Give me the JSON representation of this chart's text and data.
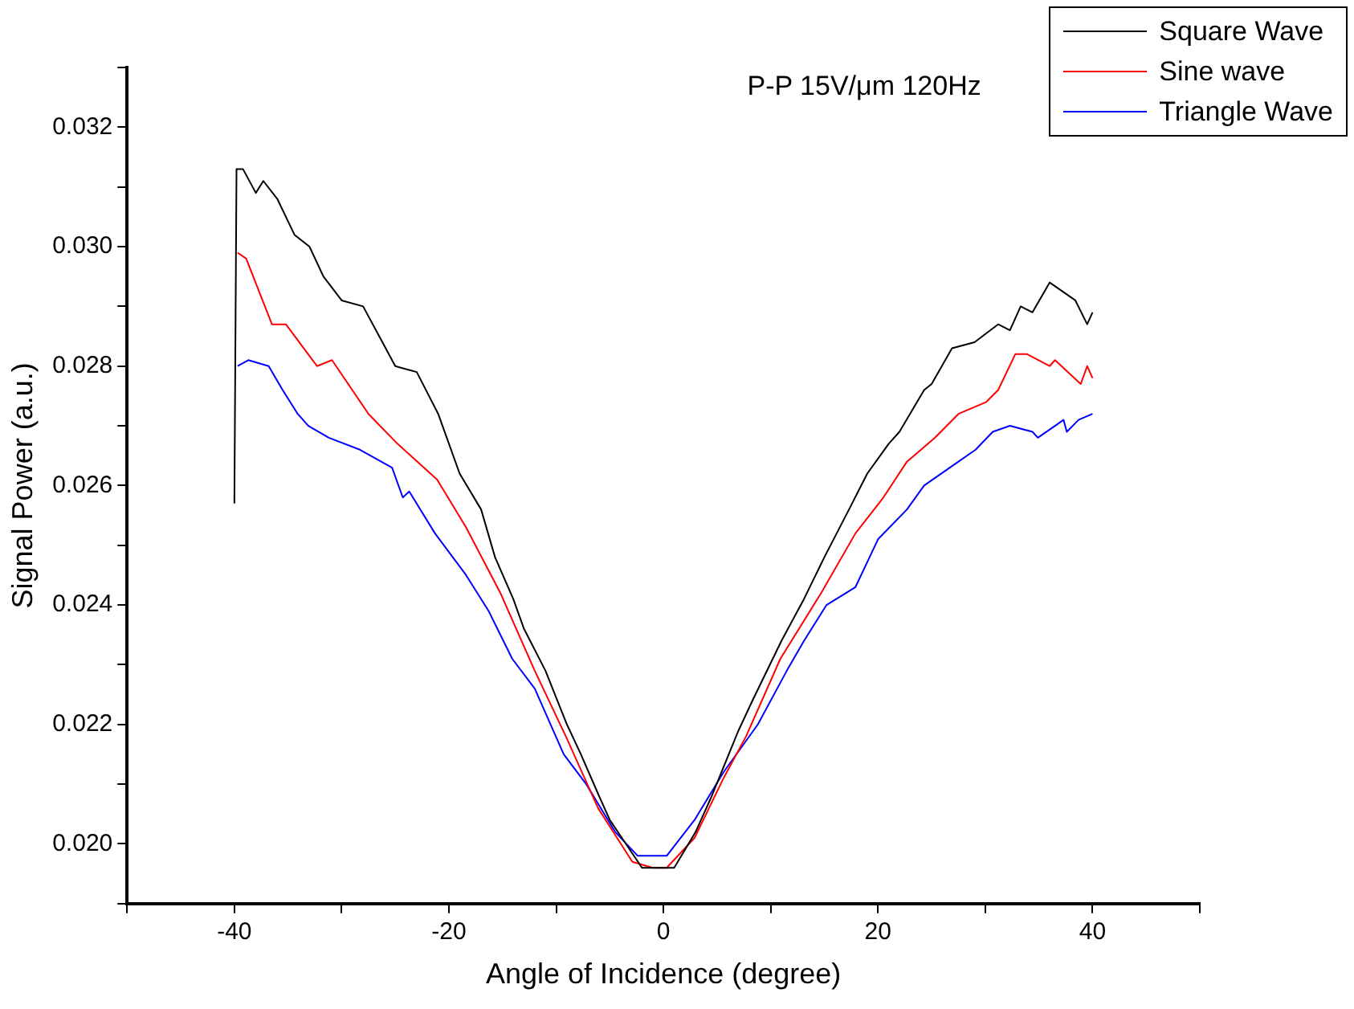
{
  "chart_data": {
    "type": "line",
    "title": "P-P 15V/μm 120Hz",
    "xlabel": "Angle of Incidence (degree)",
    "ylabel": "Signal Power (a.u.)",
    "legend": "top right",
    "grid": false,
    "marker": "none",
    "line_style": "solid",
    "xlim": [
      -50,
      50
    ],
    "xticks": [
      {
        "value": -50,
        "label": null
      },
      -40,
      {
        "value": -30,
        "label": null
      },
      -20,
      {
        "value": -10,
        "label": null
      },
      0,
      {
        "value": 10,
        "label": null
      },
      20,
      {
        "value": 30,
        "label": null
      },
      40,
      {
        "value": 50,
        "label": null
      }
    ],
    "ylim": [
      0.019,
      0.033
    ],
    "yticks": [
      {
        "value": 0.019,
        "label": null
      },
      {
        "value": 0.02,
        "label": "0.020"
      },
      {
        "value": 0.021,
        "label": null
      },
      {
        "value": 0.022,
        "label": "0.022"
      },
      {
        "value": 0.023,
        "label": null
      },
      {
        "value": 0.024,
        "label": "0.024"
      },
      {
        "value": 0.025,
        "label": null
      },
      {
        "value": 0.026,
        "label": "0.026"
      },
      {
        "value": 0.027,
        "label": null
      },
      {
        "value": 0.028,
        "label": "0.028"
      },
      {
        "value": 0.029,
        "label": null
      },
      {
        "value": 0.03,
        "label": "0.030"
      },
      {
        "value": 0.031,
        "label": null
      },
      {
        "value": 0.032,
        "label": "0.032"
      },
      {
        "value": 0.033,
        "label": null
      }
    ],
    "series": [
      {
        "name": "Square Wave",
        "color": "#000000",
        "x": [
          -40,
          -39.8,
          -39.2,
          -38,
          -37.3,
          -36,
          -34.4,
          -33,
          -31.7,
          -30,
          -28,
          -26.5,
          -25,
          -23,
          -21,
          -19,
          -17,
          -15.7,
          -14,
          -13,
          -11,
          -9,
          -7.7,
          -6,
          -5,
          -3.5,
          -2,
          0,
          1,
          3,
          4.5,
          7,
          8.3,
          11,
          13.1,
          15,
          17.3,
          19,
          21,
          22,
          24.3,
          25,
          26.9,
          29,
          31.2,
          32.3,
          33.3,
          34.4,
          36,
          38.4,
          39.5,
          40
        ],
        "values": [
          0.0257,
          0.0313,
          0.0313,
          0.0309,
          0.0311,
          0.0308,
          0.0302,
          0.03,
          0.0295,
          0.0291,
          0.029,
          0.0285,
          0.028,
          0.0279,
          0.0272,
          0.0262,
          0.0256,
          0.0248,
          0.0241,
          0.0236,
          0.0229,
          0.022,
          0.0215,
          0.0208,
          0.0204,
          0.02,
          0.0196,
          0.0196,
          0.0196,
          0.0202,
          0.0208,
          0.0219,
          0.0224,
          0.0234,
          0.0241,
          0.0248,
          0.0256,
          0.0262,
          0.0267,
          0.0269,
          0.0276,
          0.0277,
          0.0283,
          0.0284,
          0.0287,
          0.0286,
          0.029,
          0.0289,
          0.0294,
          0.0291,
          0.0287,
          0.0289
        ]
      },
      {
        "name": "Sine wave",
        "color": "#ff0000",
        "x": [
          -39.7,
          -38.9,
          -36.5,
          -35.2,
          -32.3,
          -30.9,
          -27.5,
          -24.8,
          -21.1,
          -18.4,
          -15.2,
          -12,
          -9.1,
          -6.1,
          -2.9,
          -1,
          0.3,
          2.9,
          5.6,
          7.7,
          10.9,
          14.7,
          17.9,
          20.5,
          22.7,
          25.3,
          27.5,
          30.1,
          31.2,
          32.8,
          33.9,
          36,
          36.5,
          38.9,
          39.5,
          40
        ],
        "values": [
          0.0299,
          0.0298,
          0.0287,
          0.0287,
          0.028,
          0.0281,
          0.0272,
          0.0267,
          0.0261,
          0.0253,
          0.0242,
          0.0229,
          0.0218,
          0.0206,
          0.0197,
          0.0196,
          0.0196,
          0.0201,
          0.0211,
          0.0218,
          0.0231,
          0.0242,
          0.0252,
          0.0258,
          0.0264,
          0.0268,
          0.0272,
          0.0274,
          0.0276,
          0.0282,
          0.0282,
          0.028,
          0.0281,
          0.0277,
          0.028,
          0.0278
        ]
      },
      {
        "name": "Triangle Wave",
        "color": "#0000ff",
        "x": [
          -39.7,
          -38.7,
          -36.8,
          -35.5,
          -34.1,
          -33.1,
          -31.2,
          -28.3,
          -25.3,
          -24.3,
          -23.7,
          -21.3,
          -18.4,
          -16.3,
          -14.1,
          -12,
          -9.3,
          -7.2,
          -4.5,
          -2.4,
          -0.8,
          0.3,
          2.9,
          5.6,
          8.8,
          11.5,
          13.1,
          15.2,
          17.9,
          20,
          22.7,
          24.3,
          27.5,
          29.1,
          30.7,
          32.3,
          34.4,
          34.9,
          36.5,
          37.3,
          37.6,
          38.7,
          40
        ],
        "values": [
          0.028,
          0.0281,
          0.028,
          0.0276,
          0.0272,
          0.027,
          0.0268,
          0.0266,
          0.0263,
          0.0258,
          0.0259,
          0.0252,
          0.0245,
          0.0239,
          0.0231,
          0.0226,
          0.0215,
          0.021,
          0.0202,
          0.0198,
          0.0198,
          0.0198,
          0.0204,
          0.0212,
          0.022,
          0.0229,
          0.0234,
          0.024,
          0.0243,
          0.0251,
          0.0256,
          0.026,
          0.0264,
          0.0266,
          0.0269,
          0.027,
          0.0269,
          0.0268,
          0.027,
          0.0271,
          0.0269,
          0.0271,
          0.0272
        ]
      }
    ]
  }
}
